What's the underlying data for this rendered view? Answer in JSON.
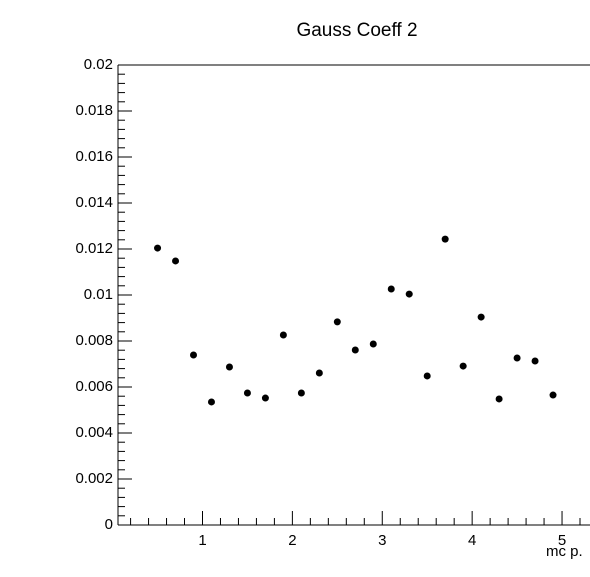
{
  "chart_data": {
    "type": "scatter",
    "title": "Gauss Coeff 2",
    "x_label": "mc p.",
    "x": [
      0.5,
      0.7,
      0.9,
      1.1,
      1.3,
      1.5,
      1.7,
      1.9,
      2.1,
      2.3,
      2.5,
      2.7,
      2.9,
      3.1,
      3.3,
      3.5,
      3.7,
      3.9,
      4.1,
      4.3,
      4.5,
      4.7,
      4.9
    ],
    "values": [
      0.01204,
      0.01148,
      0.00739,
      0.00535,
      0.00687,
      0.00574,
      0.00552,
      0.00826,
      0.00574,
      0.00661,
      0.00883,
      0.00761,
      0.00787,
      0.01026,
      0.01004,
      0.00648,
      0.01243,
      0.00691,
      0.00904,
      0.00548,
      0.00726,
      0.00713,
      0.00565
    ],
    "color": "#000000",
    "xlim": [
      0.06,
      5.3
    ],
    "xticks": [
      1,
      2,
      3,
      4,
      5
    ],
    "ylim": [
      0,
      0.02
    ],
    "yticks": [
      0,
      0.002,
      0.004,
      0.006,
      0.008,
      0.01,
      0.012,
      0.014,
      0.016,
      0.018,
      0.02
    ]
  }
}
